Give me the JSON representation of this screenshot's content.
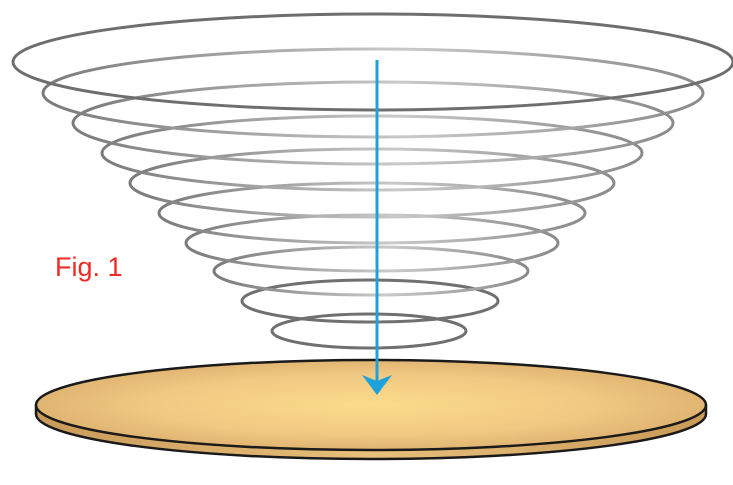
{
  "figure": {
    "label": "Fig. 1"
  },
  "colors": {
    "ring_stroke": "#6e6e6e",
    "arrow": "#1fa2dc",
    "plate_light": "#fbdc8c",
    "plate_dark": "#d7a968",
    "plate_outline": "#1a1a1a",
    "label": "#ee2a24"
  },
  "vortex": {
    "ring_count": 10
  }
}
